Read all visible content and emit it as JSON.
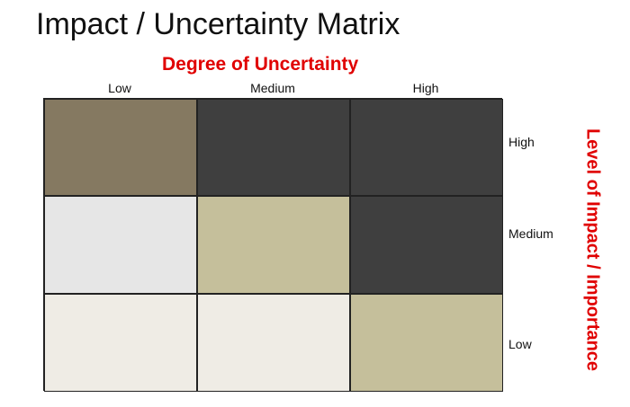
{
  "title": "Impact / Uncertainty Matrix",
  "x_axis_title": "Degree of Uncertainty",
  "y_axis_title": "Level of Impact / Importance",
  "columns": [
    "Low",
    "Medium",
    "High"
  ],
  "rows": [
    "High",
    "Medium",
    "Low"
  ],
  "cells": [
    {
      "row": "High",
      "column": "Low",
      "color": "#857961"
    },
    {
      "row": "High",
      "column": "Medium",
      "color": "#3f3f3f"
    },
    {
      "row": "High",
      "column": "High",
      "color": "#3f3f3f"
    },
    {
      "row": "Medium",
      "column": "Low",
      "color": "#e6e6e6"
    },
    {
      "row": "Medium",
      "column": "Medium",
      "color": "#c5bf9b"
    },
    {
      "row": "Medium",
      "column": "High",
      "color": "#3f3f3f"
    },
    {
      "row": "Low",
      "column": "Low",
      "color": "#efece5"
    },
    {
      "row": "Low",
      "column": "Medium",
      "color": "#efece5"
    },
    {
      "row": "Low",
      "column": "High",
      "color": "#c5bf9b"
    }
  ],
  "colors": {
    "axis_title": "#e00000",
    "text": "#111111",
    "grid_border": "#222222"
  }
}
